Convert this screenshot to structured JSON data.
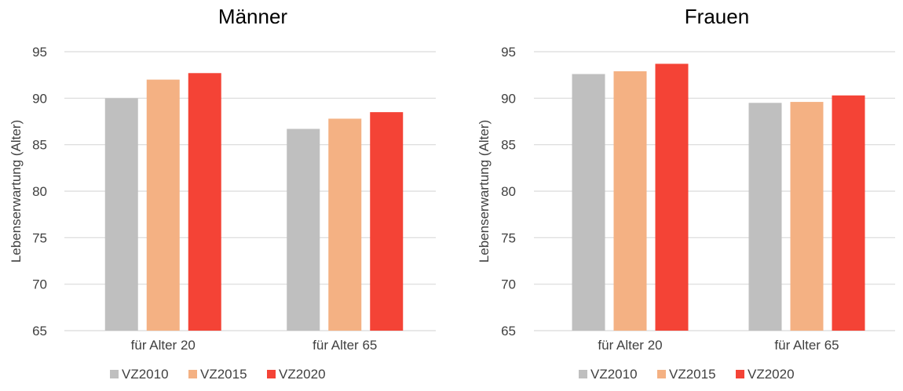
{
  "chart_data": [
    {
      "type": "bar",
      "title": "Männer",
      "ylabel": "Lebenserwartung  (Alter)",
      "xlabel": "",
      "categories": [
        "für Alter 20",
        "für Alter 65"
      ],
      "yticks": [
        "65",
        "70",
        "75",
        "80",
        "85",
        "90",
        "95"
      ],
      "ylim": [
        65,
        95
      ],
      "grid": true,
      "legend": "bottom",
      "series": [
        {
          "name": "VZ2010",
          "color": "#bfbfbf",
          "values": [
            90.0,
            86.7
          ]
        },
        {
          "name": "VZ2015",
          "color": "#f4b183",
          "values": [
            92.0,
            87.8
          ]
        },
        {
          "name": "VZ2020",
          "color": "#f44336",
          "values": [
            92.7,
            88.5
          ]
        }
      ]
    },
    {
      "type": "bar",
      "title": "Frauen",
      "ylabel": "Lebenserwartung (Alter)",
      "xlabel": "",
      "categories": [
        "für Alter 20",
        "für Alter 65"
      ],
      "yticks": [
        "65",
        "70",
        "75",
        "80",
        "85",
        "90",
        "95"
      ],
      "ylim": [
        65,
        95
      ],
      "grid": true,
      "legend": "bottom",
      "series": [
        {
          "name": "VZ2010",
          "color": "#bfbfbf",
          "values": [
            92.6,
            89.5
          ]
        },
        {
          "name": "VZ2015",
          "color": "#f4b183",
          "values": [
            92.9,
            89.6
          ]
        },
        {
          "name": "VZ2020",
          "color": "#f44336",
          "values": [
            93.7,
            90.3
          ]
        }
      ]
    }
  ]
}
